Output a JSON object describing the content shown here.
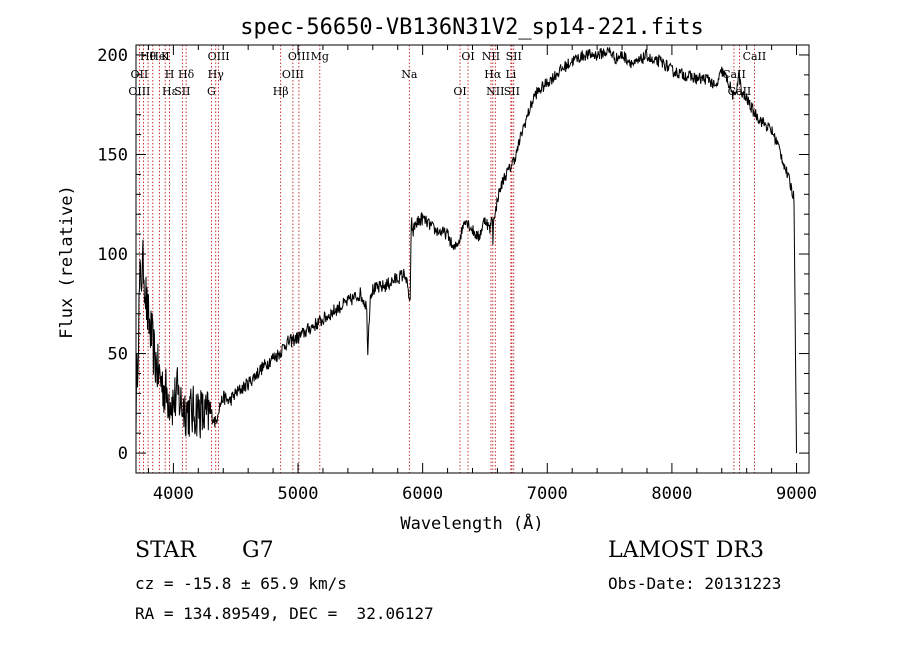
{
  "chart_data": {
    "type": "line",
    "title": "spec-56650-VB136N31V2_sp14-221.fits",
    "xlabel": "Wavelength (Å)",
    "ylabel": "Flux (relative)",
    "xlim": [
      3700,
      9100
    ],
    "ylim": [
      -10,
      205
    ],
    "xticks": [
      4000,
      5000,
      6000,
      7000,
      8000,
      9000
    ],
    "yticks": [
      0,
      50,
      100,
      150,
      200
    ],
    "x": [
      3700,
      3730,
      3760,
      3790,
      3820,
      3850,
      3880,
      3910,
      3940,
      3970,
      4000,
      4030,
      4060,
      4100,
      4150,
      4200,
      4250,
      4300,
      4340,
      4360,
      4400,
      4450,
      4500,
      4600,
      4700,
      4800,
      4850,
      4870,
      4900,
      5000,
      5100,
      5200,
      5300,
      5400,
      5500,
      5550,
      5560,
      5580,
      5600,
      5700,
      5800,
      5860,
      5900,
      5910,
      5920,
      5940,
      6000,
      6100,
      6200,
      6250,
      6300,
      6340,
      6400,
      6450,
      6500,
      6540,
      6560,
      6563,
      6570,
      6580,
      6600,
      6650,
      6700,
      6750,
      6800,
      6900,
      7000,
      7100,
      7200,
      7300,
      7400,
      7500,
      7550,
      7600,
      7700,
      7800,
      7850,
      7900,
      7950,
      8000,
      8100,
      8200,
      8300,
      8350,
      8400,
      8450,
      8500,
      8540,
      8560,
      8600,
      8650,
      8700,
      8750,
      8800,
      8850,
      8900,
      8950,
      8980,
      9000
    ],
    "y": [
      20,
      85,
      95,
      70,
      60,
      48,
      40,
      35,
      30,
      28,
      25,
      30,
      25,
      22,
      20,
      22,
      18,
      20,
      15,
      22,
      28,
      26,
      30,
      35,
      42,
      48,
      50,
      52,
      55,
      58,
      63,
      67,
      72,
      76,
      80,
      74,
      52,
      80,
      82,
      84,
      88,
      90,
      75,
      120,
      110,
      115,
      118,
      112,
      110,
      102,
      108,
      118,
      112,
      108,
      118,
      112,
      120,
      100,
      122,
      118,
      128,
      138,
      143,
      150,
      162,
      180,
      186,
      192,
      197,
      200,
      200,
      202,
      198,
      200,
      195,
      200,
      196,
      197,
      195,
      192,
      190,
      188,
      188,
      183,
      192,
      187,
      178,
      190,
      180,
      178,
      172,
      168,
      165,
      162,
      155,
      145,
      135,
      128,
      0
    ],
    "line_labels": [
      {
        "text": "Hθ",
        "wl": 3797
      },
      {
        "text": "OII",
        "wl": 3727
      },
      {
        "text": "OIII",
        "wl": 3727
      },
      {
        "text": "K",
        "wl": 3934
      },
      {
        "text": "H",
        "wl": 3969
      },
      {
        "text": "Hε",
        "wl": 3970
      },
      {
        "text": "HeI",
        "wl": 3889
      },
      {
        "text": "Hδ",
        "wl": 4102
      },
      {
        "text": "SII",
        "wl": 4072
      },
      {
        "text": "OIII",
        "wl": 4363
      },
      {
        "text": "Hγ",
        "wl": 4340
      },
      {
        "text": "G",
        "wl": 4305
      },
      {
        "text": "OIII",
        "wl": 5007
      },
      {
        "text": "OIII",
        "wl": 4959
      },
      {
        "text": "Hβ",
        "wl": 4861
      },
      {
        "text": "Mg",
        "wl": 5175
      },
      {
        "text": "Na",
        "wl": 5893
      },
      {
        "text": "OI",
        "wl": 6300
      },
      {
        "text": "OI",
        "wl": 6364
      },
      {
        "text": "Hα",
        "wl": 6563
      },
      {
        "text": "SII",
        "wl": 6716
      },
      {
        "text": "NII",
        "wl": 6548
      },
      {
        "text": "Li",
        "wl": 6708
      },
      {
        "text": "NII",
        "wl": 6583
      },
      {
        "text": "SII",
        "wl": 6731
      },
      {
        "text": "CaII",
        "wl": 8498
      },
      {
        "text": "CaII",
        "wl": 8542
      },
      {
        "text": "CaII",
        "wl": 8662
      }
    ],
    "line_wavelengths": [
      3727,
      3760,
      3797,
      3835,
      3889,
      3934,
      3969,
      4072,
      4102,
      4305,
      4340,
      4363,
      4861,
      4959,
      5007,
      5175,
      5893,
      6300,
      6364,
      6548,
      6563,
      6583,
      6708,
      6716,
      6731,
      8498,
      8542,
      8662
    ]
  },
  "info": {
    "object_class": "STAR",
    "subclass": "G7",
    "survey": "LAMOST DR3",
    "cz_text": "cz = -15.8 ± 65.9 km/s",
    "obs_date": "Obs-Date: 20131223",
    "coords": "RA = 134.89549, DEC =  32.06127"
  }
}
